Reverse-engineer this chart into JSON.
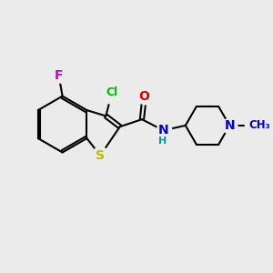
{
  "bg_color": "#ebebeb",
  "bond_color": "#000000",
  "bond_lw": 1.5,
  "figsize": [
    3.0,
    3.0
  ],
  "dpi": 100,
  "S_color": "#bbbb00",
  "Cl_color": "#00bb00",
  "F_color": "#cc00cc",
  "O_color": "#dd0000",
  "N_color": "#0000cc",
  "H_color": "#009999",
  "xlim": [
    -1.0,
    9.5
  ],
  "ylim": [
    -1.5,
    8.5
  ]
}
